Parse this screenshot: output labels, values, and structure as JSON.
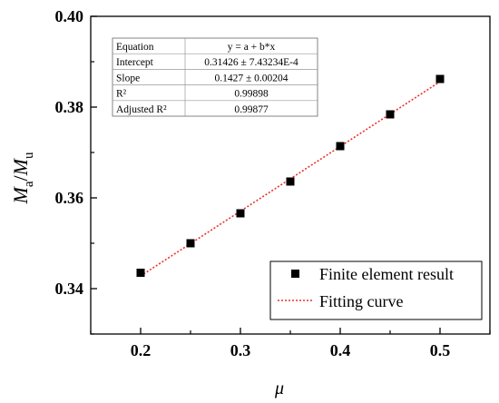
{
  "chart_data": {
    "type": "scatter",
    "x": [
      0.2,
      0.25,
      0.3,
      0.35,
      0.4,
      0.45,
      0.5
    ],
    "series": [
      {
        "name": "Finite element result",
        "kind": "points",
        "marker": "square",
        "color": "#000000",
        "values": [
          0.3435,
          0.35,
          0.3566,
          0.3636,
          0.3714,
          0.3784,
          0.3862
        ]
      },
      {
        "name": "Fitting curve",
        "kind": "line",
        "style": "dotted",
        "color": "#e8322b",
        "x": [
          0.2,
          0.5
        ],
        "values": [
          0.3428,
          0.3856
        ]
      }
    ],
    "xlabel": "μ",
    "ylabel_main": "M",
    "ylabel_sub1": "a",
    "ylabel_sep": "/",
    "ylabel_sub2": "u",
    "xlim": [
      0.15,
      0.55
    ],
    "ylim": [
      0.33,
      0.4
    ],
    "xticks": [
      "0.2",
      "0.3",
      "0.4",
      "0.5"
    ],
    "yticks": [
      "0.34",
      "0.36",
      "0.38",
      "0.40"
    ],
    "grid": false,
    "legend_position": "bottom-right",
    "stats_table": {
      "rows": [
        {
          "label": "Equation",
          "value": "y = a + b*x"
        },
        {
          "label": "Intercept",
          "value": "0.31426 ± 7.43234E-4"
        },
        {
          "label": "Slope",
          "value": "0.1427 ± 0.00204"
        },
        {
          "label": "R²",
          "value": "0.99898"
        },
        {
          "label": "Adjusted R²",
          "value": "0.99877"
        }
      ]
    }
  }
}
